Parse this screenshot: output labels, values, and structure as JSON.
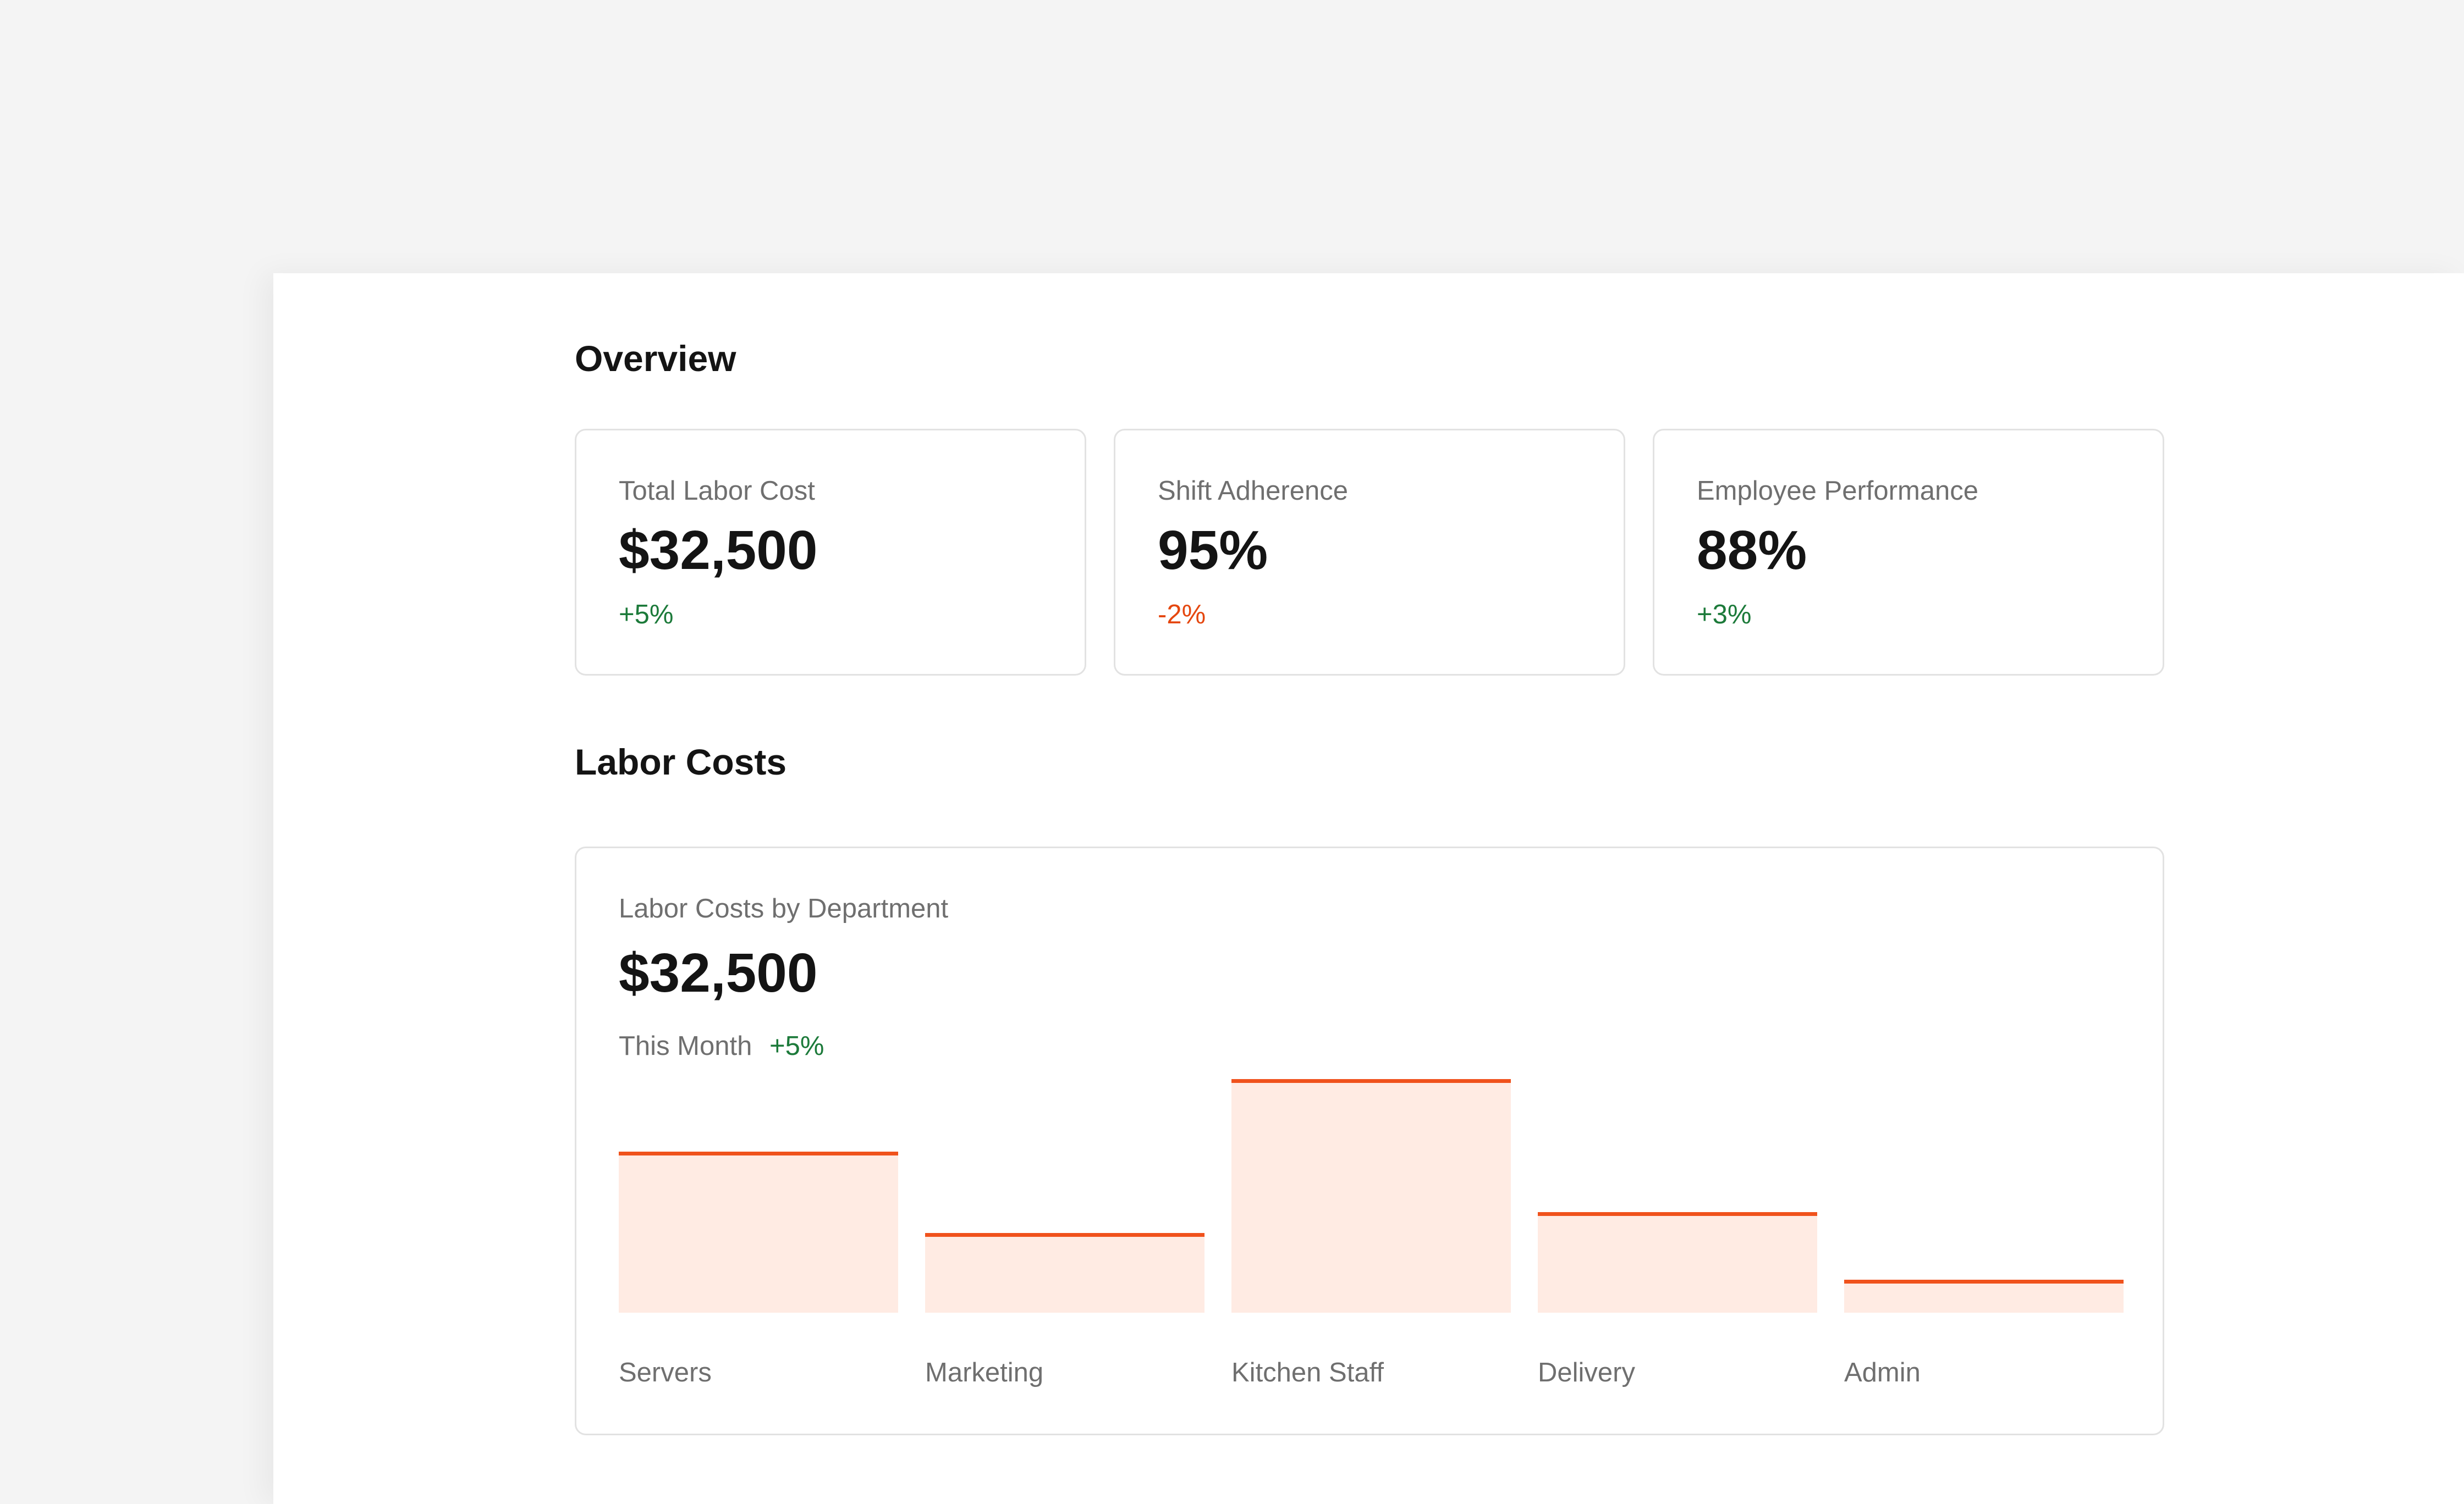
{
  "overview": {
    "title": "Overview",
    "cards": [
      {
        "label": "Total Labor Cost",
        "value": "$32,500",
        "delta": "+5%",
        "trend": "up"
      },
      {
        "label": "Shift Adherence",
        "value": "95%",
        "delta": "-2%",
        "trend": "down"
      },
      {
        "label": "Employee Performance",
        "value": "88%",
        "delta": "+3%",
        "trend": "up"
      }
    ]
  },
  "labor_costs": {
    "title": "Labor Costs",
    "card_label": "Labor Costs by Department",
    "total": "$32,500",
    "period": "This Month",
    "period_delta": "+5%"
  },
  "colors": {
    "accent": "#f0521c",
    "bar_fill": "#ffebe3",
    "positive": "#1c7a3a",
    "negative": "#e5470f"
  },
  "chart_data": {
    "type": "bar",
    "categories": [
      "Servers",
      "Marketing",
      "Kitchen Staff",
      "Delivery",
      "Admin"
    ],
    "values": [
      69,
      34,
      100,
      43,
      14
    ],
    "ylim": [
      0,
      100
    ],
    "grid": false
  }
}
